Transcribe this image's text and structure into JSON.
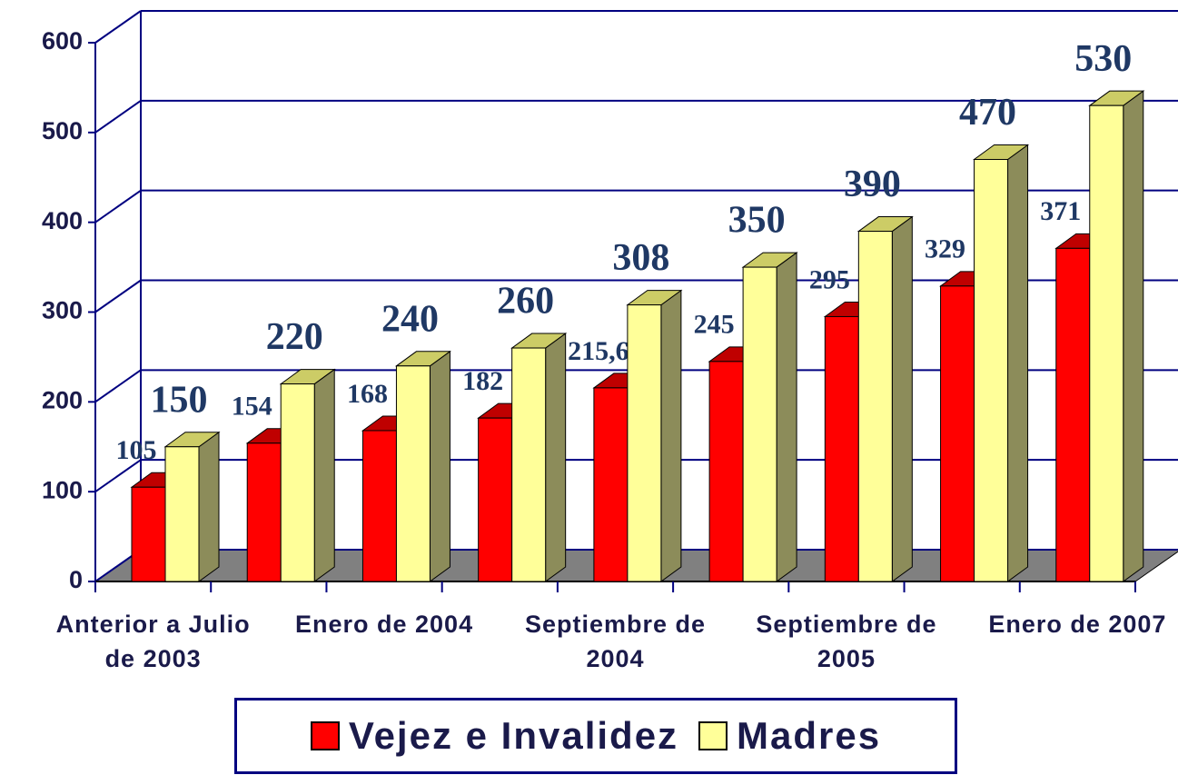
{
  "chart_data": {
    "type": "bar3d",
    "categories": [
      "Anterior a Julio de 2003",
      null,
      "Enero de 2004",
      null,
      "Septiembre de 2004",
      null,
      "Septiembre de 2005",
      null,
      "Enero de 2007"
    ],
    "series": [
      {
        "name": "Vejez e Invalidez",
        "color": "#ff0000",
        "values": [
          105,
          154,
          168,
          182,
          215.6,
          245,
          295,
          329,
          371
        ],
        "value_labels": [
          "105",
          "154",
          "168",
          "182",
          "215,6",
          "245",
          "295",
          "329",
          "371"
        ]
      },
      {
        "name": "Madres",
        "color": "#ffff99",
        "values": [
          150,
          220,
          240,
          260,
          308,
          350,
          390,
          470,
          530
        ]
      }
    ],
    "ylim": [
      0,
      600
    ],
    "yticks": [
      0,
      100,
      200,
      300,
      400,
      500,
      600
    ],
    "grid": true
  }
}
